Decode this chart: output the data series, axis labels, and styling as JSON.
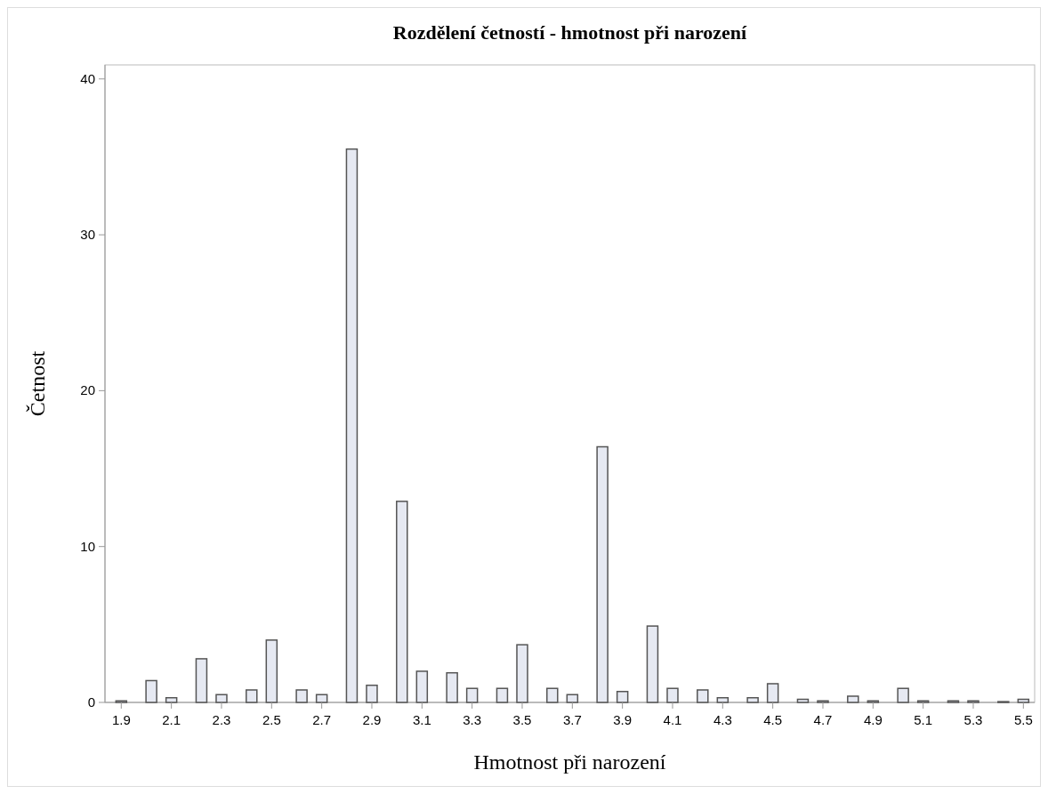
{
  "chart_data": {
    "type": "bar",
    "title": "Rozdělení četností - hmotnost při narození",
    "xlabel": "Hmotnost při narození",
    "ylabel": "Četnost",
    "color": "#e6e9f2",
    "x": [
      1.9,
      2.02,
      2.1,
      2.22,
      2.3,
      2.42,
      2.5,
      2.62,
      2.7,
      2.82,
      2.9,
      3.02,
      3.1,
      3.22,
      3.3,
      3.42,
      3.5,
      3.62,
      3.7,
      3.82,
      3.9,
      4.02,
      4.1,
      4.22,
      4.3,
      4.42,
      4.5,
      4.62,
      4.7,
      4.82,
      4.9,
      5.02,
      5.1,
      5.22,
      5.3,
      5.42,
      5.5
    ],
    "values": [
      0.1,
      1.4,
      0.3,
      2.8,
      0.5,
      0.8,
      4.0,
      0.8,
      0.5,
      35.5,
      1.1,
      12.9,
      2.0,
      1.9,
      0.9,
      0.9,
      3.7,
      0.9,
      0.5,
      16.4,
      0.7,
      4.9,
      0.9,
      0.8,
      0.3,
      0.3,
      1.2,
      0.2,
      0.1,
      0.4,
      0.1,
      0.9,
      0.1,
      0.1,
      0.1,
      0.05,
      0.2
    ],
    "xlim": [
      1.835,
      5.545
    ],
    "ylim": [
      0,
      40.9
    ],
    "xticks": [
      1.9,
      2.1,
      2.3,
      2.5,
      2.7,
      2.9,
      3.1,
      3.3,
      3.5,
      3.7,
      3.9,
      4.1,
      4.3,
      4.5,
      4.7,
      4.9,
      5.1,
      5.3,
      5.5
    ],
    "yticks": [
      0,
      10,
      20,
      30,
      40
    ]
  }
}
